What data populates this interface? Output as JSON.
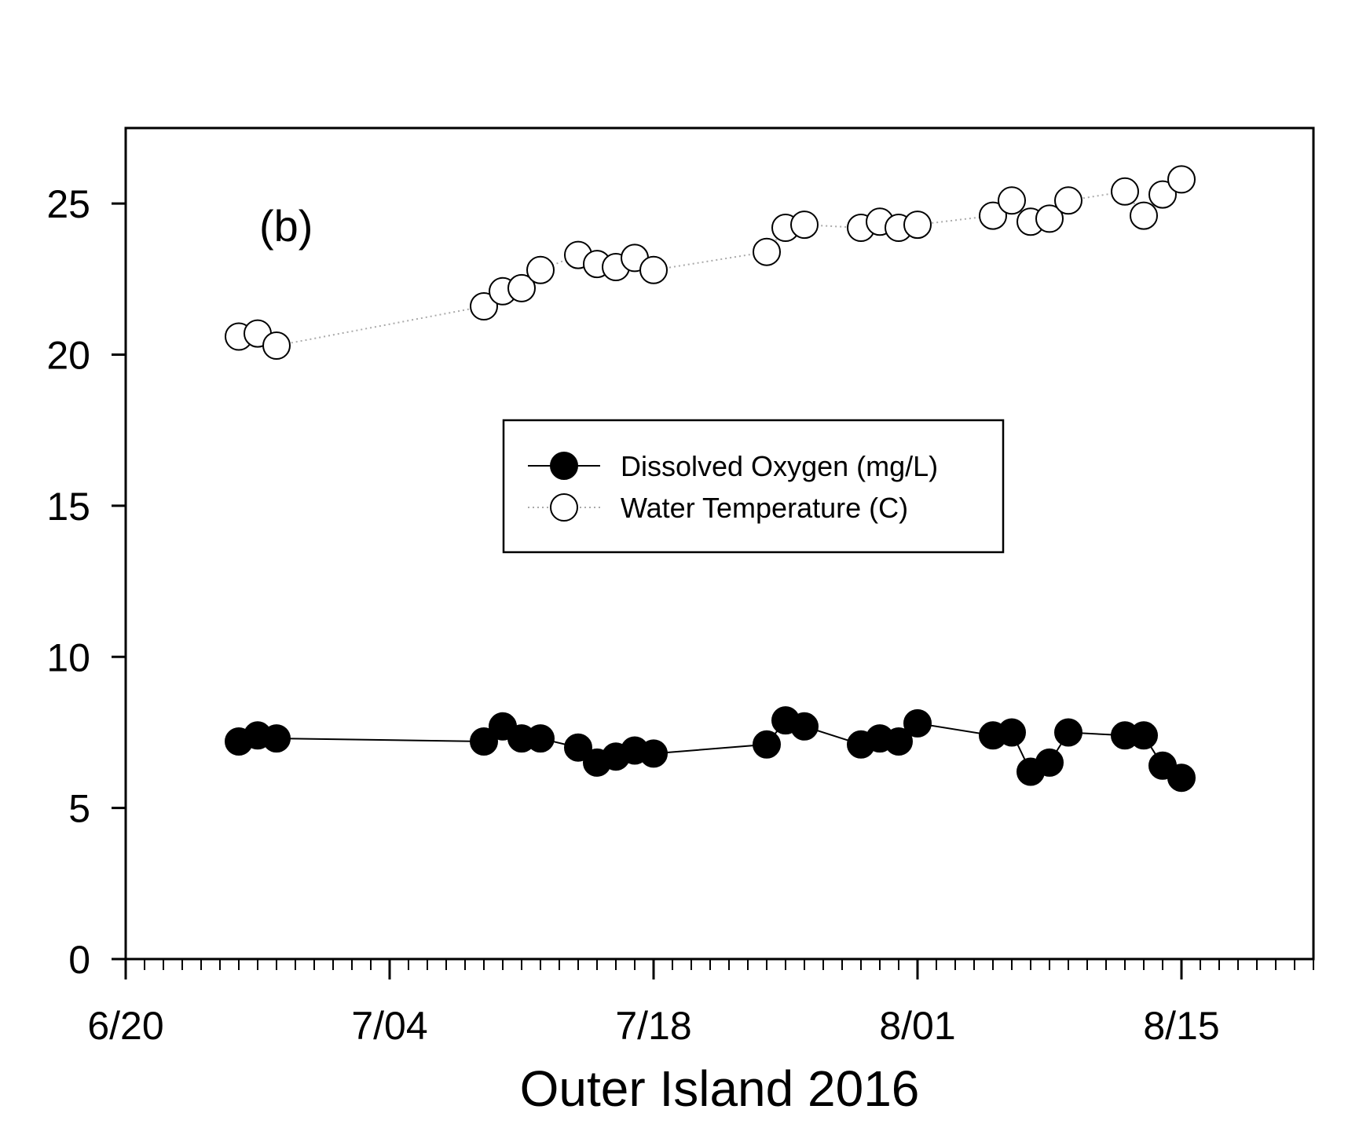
{
  "chart_data": {
    "type": "line",
    "title": "",
    "panel_label": "(b)",
    "xlabel": "Outer Island 2016",
    "ylabel": "",
    "xlim": [
      "2016-06-20",
      "2016-08-22"
    ],
    "ylim": [
      0,
      27.5
    ],
    "x_ticks": [
      {
        "date": "2016-06-20",
        "label": "6/20"
      },
      {
        "date": "2016-07-04",
        "label": "7/04"
      },
      {
        "date": "2016-07-18",
        "label": "7/18"
      },
      {
        "date": "2016-08-01",
        "label": "8/01"
      },
      {
        "date": "2016-08-15",
        "label": "8/15"
      }
    ],
    "y_ticks": [
      0,
      5,
      10,
      15,
      20,
      25
    ],
    "y_tick_labels": [
      "0",
      "5",
      "10",
      "15",
      "20",
      "25"
    ],
    "minor_tick_days": 1,
    "grid": false,
    "legend": {
      "placement": "center"
    },
    "x": [
      "2016-06-26",
      "2016-06-27",
      "2016-06-28",
      "2016-07-09",
      "2016-07-10",
      "2016-07-11",
      "2016-07-12",
      "2016-07-14",
      "2016-07-15",
      "2016-07-16",
      "2016-07-17",
      "2016-07-18",
      "2016-07-24",
      "2016-07-25",
      "2016-07-26",
      "2016-07-29",
      "2016-07-30",
      "2016-07-31",
      "2016-08-01",
      "2016-08-05",
      "2016-08-06",
      "2016-08-07",
      "2016-08-08",
      "2016-08-09",
      "2016-08-12",
      "2016-08-13",
      "2016-08-14",
      "2016-08-15"
    ],
    "series": [
      {
        "name": "Dissolved Oxygen (mg/L)",
        "marker": "filled-circle",
        "line": "solid",
        "color": "#000000",
        "values": [
          7.2,
          7.4,
          7.3,
          7.2,
          7.7,
          7.3,
          7.3,
          7.0,
          6.5,
          6.7,
          6.9,
          6.8,
          7.1,
          7.9,
          7.7,
          7.1,
          7.3,
          7.2,
          7.8,
          7.4,
          7.5,
          6.2,
          6.5,
          7.5,
          7.4,
          7.4,
          6.4,
          6.0
        ]
      },
      {
        "name": "Water Temperature (C)",
        "marker": "open-circle",
        "line": "dotted",
        "color": "#000000",
        "values": [
          20.6,
          20.7,
          20.3,
          21.6,
          22.1,
          22.2,
          22.8,
          23.3,
          23.0,
          22.9,
          23.2,
          22.8,
          23.4,
          24.2,
          24.3,
          24.2,
          24.4,
          24.2,
          24.3,
          24.6,
          25.1,
          24.4,
          24.5,
          25.1,
          25.4,
          24.6,
          25.3,
          25.8
        ]
      }
    ]
  }
}
